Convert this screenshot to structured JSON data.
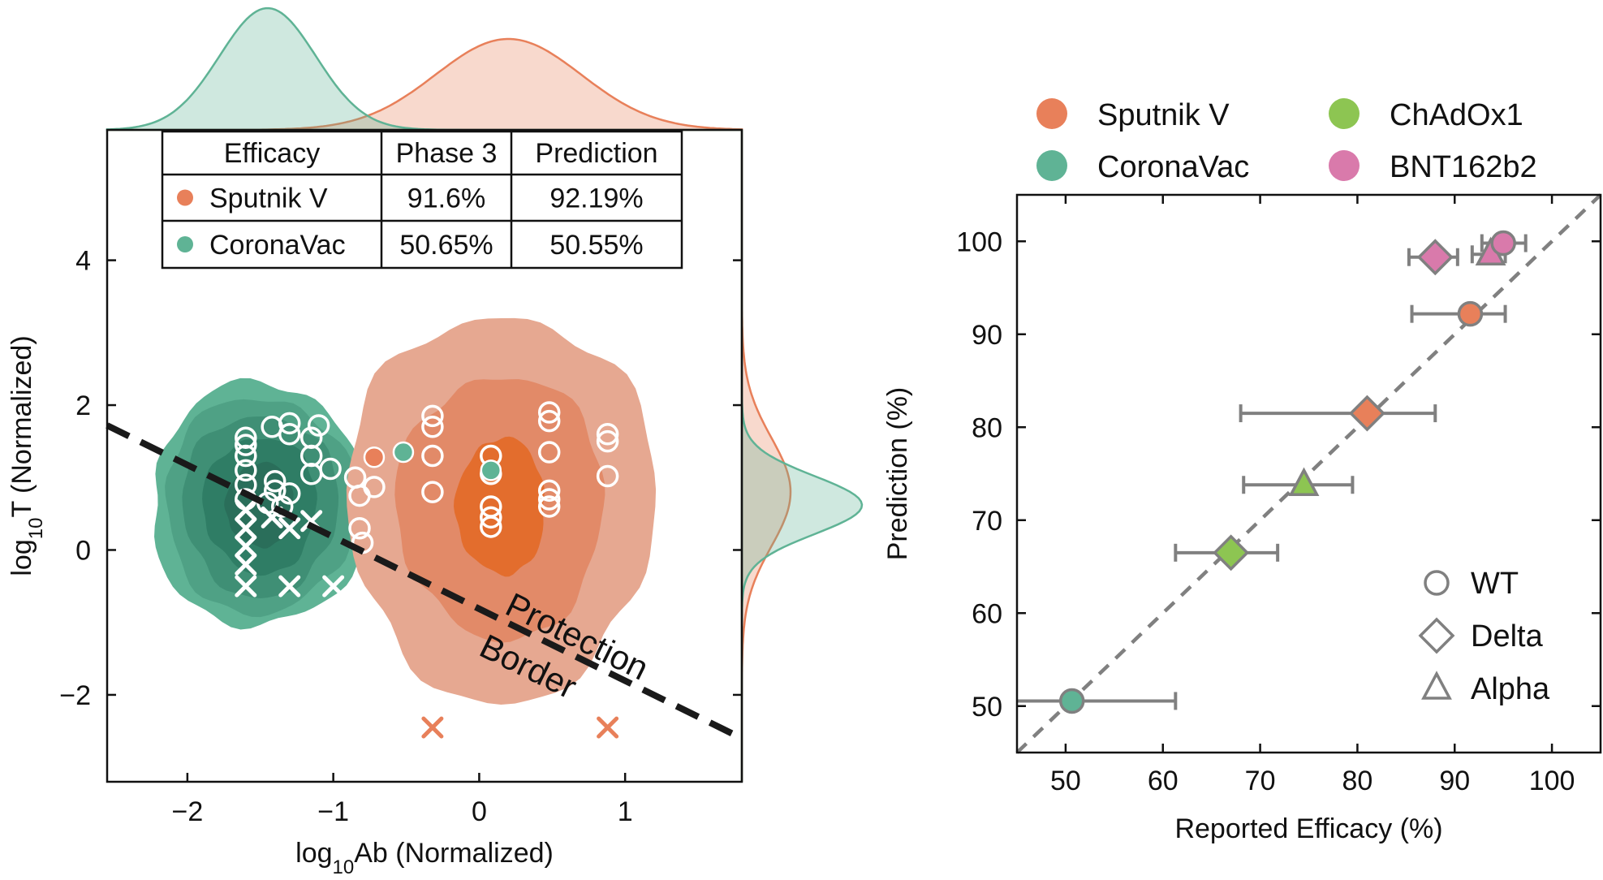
{
  "chart_data": [
    {
      "type": "scatter",
      "xlabel_main": "log",
      "xlabel_sub": "10",
      "xlabel_rest": "Ab (Normalized)",
      "ylabel_main": "log",
      "ylabel_sub": "10",
      "ylabel_rest": "T (Normalized)",
      "xlim": [
        -2.55,
        1.8
      ],
      "ylim": [
        -3.2,
        5.8
      ],
      "xticks": [
        -2,
        -1,
        0,
        1
      ],
      "xtick_labels": [
        "−2",
        "−1",
        "0",
        "1"
      ],
      "yticks": [
        -2,
        0,
        2,
        4
      ],
      "ytick_labels": [
        "−2",
        "0",
        "2",
        "4"
      ],
      "annotation_line1": "Protection",
      "annotation_line2": "Border",
      "protection_border": {
        "x": [
          -2.55,
          1.8
        ],
        "y": [
          1.72,
          -2.6
        ]
      },
      "table": {
        "headers": [
          "Efficacy",
          "Phase 3",
          "Prediction"
        ],
        "rows": [
          {
            "name": "Sputnik V",
            "phase3": "91.6%",
            "prediction": "92.19%",
            "color": "#e8805a"
          },
          {
            "name": "CoronaVac",
            "phase3": "50.65%",
            "prediction": "50.55%",
            "color": "#5fb395"
          }
        ]
      },
      "series": [
        {
          "group": "CoronaVac",
          "color": "#5fb395",
          "density_center": [
            -1.5,
            0.62
          ],
          "protected_points": [
            [
              -1.6,
              1.55
            ],
            [
              -1.6,
              1.45
            ],
            [
              -1.6,
              1.3
            ],
            [
              -1.6,
              1.1
            ],
            [
              -1.6,
              0.9
            ],
            [
              -1.6,
              0.7
            ],
            [
              -1.42,
              1.7
            ],
            [
              -1.3,
              1.75
            ],
            [
              -1.3,
              1.6
            ],
            [
              -1.1,
              1.72
            ],
            [
              -1.15,
              1.55
            ],
            [
              -1.15,
              1.3
            ],
            [
              -1.15,
              1.05
            ],
            [
              -1.02,
              1.12
            ],
            [
              -1.4,
              0.95
            ],
            [
              -1.4,
              0.82
            ],
            [
              -1.3,
              0.78
            ],
            [
              -1.45,
              0.65
            ],
            [
              -1.35,
              0.6
            ],
            [
              -0.85,
              1.0
            ],
            [
              -0.82,
              0.75
            ],
            [
              -0.72,
              0.87
            ],
            [
              -0.82,
              0.3
            ],
            [
              -0.8,
              0.1
            ]
          ],
          "unprotected_points": [
            [
              -1.6,
              0.55
            ],
            [
              -1.6,
              0.3
            ],
            [
              -1.6,
              0.05
            ],
            [
              -1.6,
              -0.2
            ],
            [
              -1.6,
              -0.5
            ],
            [
              -1.42,
              0.45
            ],
            [
              -1.3,
              0.3
            ],
            [
              -1.3,
              -0.5
            ],
            [
              -1.15,
              0.4
            ],
            [
              -1.0,
              -0.5
            ]
          ]
        },
        {
          "group": "Sputnik V",
          "color": "#e8805a",
          "density_center": [
            0.15,
            0.6
          ],
          "protected_points": [
            [
              -0.32,
              1.85
            ],
            [
              -0.32,
              1.7
            ],
            [
              -0.32,
              1.3
            ],
            [
              -0.32,
              0.8
            ],
            [
              0.08,
              1.3
            ],
            [
              0.08,
              1.05
            ],
            [
              0.08,
              0.6
            ],
            [
              0.08,
              0.45
            ],
            [
              0.08,
              0.32
            ],
            [
              0.48,
              1.9
            ],
            [
              0.48,
              1.78
            ],
            [
              0.48,
              1.35
            ],
            [
              0.48,
              0.82
            ],
            [
              0.48,
              0.7
            ],
            [
              0.48,
              0.6
            ],
            [
              0.88,
              1.6
            ],
            [
              0.88,
              1.5
            ],
            [
              0.88,
              1.02
            ]
          ],
          "unprotected_points": [
            [
              -0.32,
              -2.45
            ],
            [
              0.88,
              -2.45
            ]
          ]
        }
      ],
      "small_filled_points": [
        {
          "x": -0.72,
          "y": 1.28,
          "color": "#e8805a"
        },
        {
          "x": -0.52,
          "y": 1.35,
          "color": "#5fb395"
        },
        {
          "x": 0.08,
          "y": 1.1,
          "color": "#5fb395"
        }
      ]
    },
    {
      "type": "scatter",
      "xlabel": "Reported Efficacy (%)",
      "ylabel": "Prediction (%)",
      "xlim": [
        45,
        105
      ],
      "ylim": [
        45,
        105
      ],
      "xticks": [
        50,
        60,
        70,
        80,
        90,
        100
      ],
      "xtick_labels": [
        "50",
        "60",
        "70",
        "80",
        "90",
        "100"
      ],
      "yticks": [
        50,
        60,
        70,
        80,
        90,
        100
      ],
      "ytick_labels": [
        "50",
        "60",
        "70",
        "80",
        "90",
        "100"
      ],
      "identity_line": true,
      "legend_vaccines": [
        {
          "label": "Sputnik V",
          "color": "#e8805a"
        },
        {
          "label": "ChAdOx1",
          "color": "#8dc552"
        },
        {
          "label": "CoronaVac",
          "color": "#5fb395"
        },
        {
          "label": "BNT162b2",
          "color": "#d97aab"
        }
      ],
      "legend_variants": [
        {
          "label": "WT",
          "shape": "circle"
        },
        {
          "label": "Delta",
          "shape": "diamond"
        },
        {
          "label": "Alpha",
          "shape": "triangle"
        }
      ],
      "points": [
        {
          "vaccine": "CoronaVac",
          "variant": "WT",
          "x": 50.65,
          "y": 50.55,
          "xerr": [
            45,
            61.3
          ],
          "color": "#5fb395"
        },
        {
          "vaccine": "ChAdOx1",
          "variant": "Delta",
          "x": 67,
          "y": 66.5,
          "xerr": [
            61.3,
            71.8
          ],
          "color": "#8dc552"
        },
        {
          "vaccine": "ChAdOx1",
          "variant": "Alpha",
          "x": 74.5,
          "y": 73.8,
          "xerr": [
            68.3,
            79.5
          ],
          "color": "#8dc552"
        },
        {
          "vaccine": "Sputnik V",
          "variant": "Delta",
          "x": 81,
          "y": 81.5,
          "xerr": [
            68,
            88
          ],
          "color": "#e8805a"
        },
        {
          "vaccine": "Sputnik V",
          "variant": "WT",
          "x": 91.6,
          "y": 92.19,
          "xerr": [
            85.6,
            95.2
          ],
          "color": "#e8805a"
        },
        {
          "vaccine": "BNT162b2",
          "variant": "Delta",
          "x": 88,
          "y": 98.3,
          "xerr": [
            85.3,
            90.3
          ],
          "color": "#d97aab"
        },
        {
          "vaccine": "BNT162b2",
          "variant": "Alpha",
          "x": 93.7,
          "y": 98.6,
          "xerr": [
            91.8,
            95.2
          ],
          "color": "#d97aab"
        },
        {
          "vaccine": "BNT162b2",
          "variant": "WT",
          "x": 95,
          "y": 99.8,
          "xerr": [
            92.8,
            97.3
          ],
          "color": "#d97aab"
        }
      ]
    }
  ]
}
